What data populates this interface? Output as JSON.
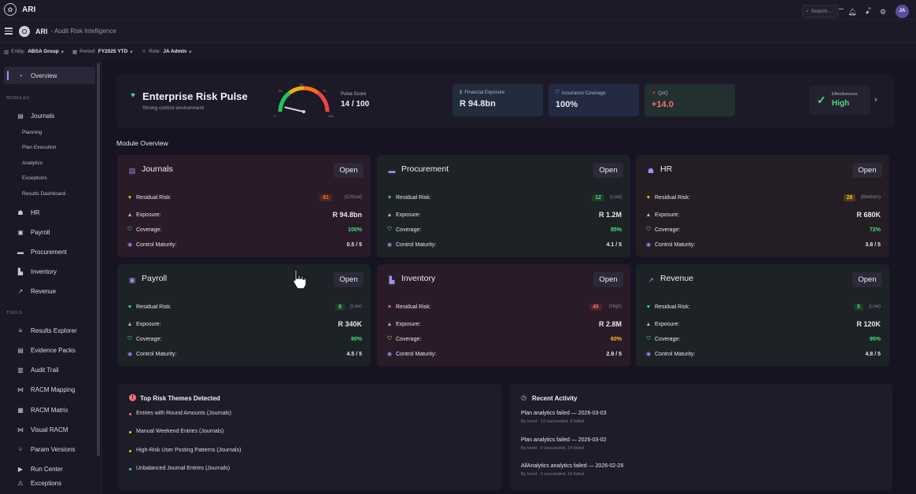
{
  "window": {
    "title": "ARI"
  },
  "header": {
    "app": "ARI",
    "subtitle": "- Audit Risk Intelligence",
    "search_placeholder": "Search...",
    "avatar_initials": "JA"
  },
  "context": {
    "entity_label": "Entity:",
    "entity_value": "ABSA Group",
    "period_label": "Period:",
    "period_value": "FY2025 YTD",
    "role_label": "Role:",
    "role_value": "JA Admin"
  },
  "sidebar": {
    "overview": "Overview",
    "modules_heading": "MODULES",
    "journals": "Journals",
    "journals_sub": [
      "Planning",
      "Plan Execution",
      "Analytics",
      "Exceptions",
      "Results Dashboard"
    ],
    "modules": [
      "HR",
      "Payroll",
      "Procurement",
      "Inventory",
      "Revenue"
    ],
    "tools_heading": "TOOLS",
    "tools": [
      "Results Explorer",
      "Evidence Packs",
      "Audit Trail",
      "RACM Mapping",
      "RACM Matrix",
      "Visual RACM",
      "Param Versions",
      "Run Center",
      "Exceptions"
    ]
  },
  "pulse": {
    "title": "Enterprise Risk Pulse",
    "subtitle": "Strong control environment",
    "score_label": "Pulse Score",
    "score_value": "14 / 100",
    "score_fraction": 0.14,
    "gauge_ticks": [
      "0",
      "25",
      "50",
      "75",
      "100"
    ],
    "kpis": [
      {
        "label": "Financial Exposure",
        "value": "R 94.8bn",
        "color": "#e8e6f0"
      },
      {
        "label": "Assurance Coverage",
        "value": "100%",
        "color": "#e8e6f0"
      },
      {
        "label": "QoQ",
        "value": "+14.0",
        "color": "#f87171"
      }
    ],
    "effectiveness_label": "Effectiveness",
    "effectiveness_value": "High"
  },
  "module_overview": {
    "heading": "Module Overview",
    "open_label": "Open",
    "labels": {
      "risk": "Residual Risk:",
      "exposure": "Exposure:",
      "coverage": "Coverage:",
      "maturity": "Control Maturity:"
    },
    "cards": [
      {
        "name": "Journals",
        "risk": "81",
        "severity": "(Critical)",
        "exposure": "R 94.8bn",
        "coverage": "100%",
        "maturity": "0.5 / 5"
      },
      {
        "name": "Procurement",
        "risk": "12",
        "severity": "(Low)",
        "exposure": "R 1.2M",
        "coverage": "85%",
        "maturity": "4.1 / 5"
      },
      {
        "name": "HR",
        "risk": "28",
        "severity": "(Medium)",
        "exposure": "R 680K",
        "coverage": "72%",
        "maturity": "3.8 / 5"
      },
      {
        "name": "Payroll",
        "risk": "8",
        "severity": "(Low)",
        "exposure": "R 340K",
        "coverage": "90%",
        "maturity": "4.5 / 5"
      },
      {
        "name": "Inventory",
        "risk": "45",
        "severity": "(High)",
        "exposure": "R 2.8M",
        "coverage": "60%",
        "maturity": "2.9 / 5"
      },
      {
        "name": "Revenue",
        "risk": "5",
        "severity": "(Low)",
        "exposure": "R 120K",
        "coverage": "95%",
        "maturity": "4.8 / 5"
      }
    ]
  },
  "themes": {
    "title": "Top Risk Themes Detected",
    "items": [
      {
        "text": "Entries with Round Amounts (Journals)",
        "color": "#f87171"
      },
      {
        "text": "Manual Weekend Entries (Journals)",
        "color": "#fbbf24"
      },
      {
        "text": "High-Risk User Posting Patterns (Journals)",
        "color": "#fbbf24"
      },
      {
        "text": "Unbalanced Journal Entries (Journals)",
        "color": "#4ade80"
      }
    ]
  },
  "activity": {
    "title": "Recent Activity",
    "items": [
      {
        "text": "Plan analytics failed — 2026-03-03",
        "sub": "By trsed · 12 succeeded, 8 failed"
      },
      {
        "text": "Plan analytics failed — 2026-03-02",
        "sub": "By trsed · 0 succeeded, 19 failed"
      },
      {
        "text": "AllAnalytics analytics failed — 2026-02-26",
        "sub": "By trsed · 0 succeeded, 19 failed"
      }
    ]
  }
}
